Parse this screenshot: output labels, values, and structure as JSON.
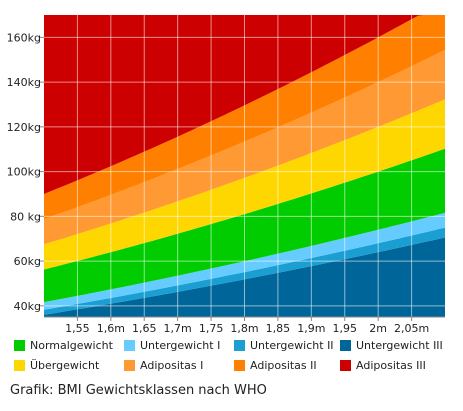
{
  "chart_data": {
    "type": "area",
    "xlabel": "",
    "ylabel": "",
    "x_range": [
      1.5,
      2.1
    ],
    "ylim": [
      35,
      170
    ],
    "x_ticks": [
      {
        "value": 1.55,
        "label": "1,55"
      },
      {
        "value": 1.6,
        "label": "1,6m"
      },
      {
        "value": 1.65,
        "label": "1,65"
      },
      {
        "value": 1.7,
        "label": "1,7m"
      },
      {
        "value": 1.75,
        "label": "1,75"
      },
      {
        "value": 1.8,
        "label": "1,8m"
      },
      {
        "value": 1.85,
        "label": "1,85"
      },
      {
        "value": 1.9,
        "label": "1,9m"
      },
      {
        "value": 1.95,
        "label": "1,95"
      },
      {
        "value": 2.0,
        "label": "2m"
      },
      {
        "value": 2.05,
        "label": "2,05m"
      }
    ],
    "y_ticks": [
      {
        "value": 40,
        "label": "40kg"
      },
      {
        "value": 60,
        "label": "60kg"
      },
      {
        "value": 80,
        "label": "80 kg"
      },
      {
        "value": 100,
        "label": "100kg"
      },
      {
        "value": 120,
        "label": "120kg"
      },
      {
        "value": 140,
        "label": "140kg"
      },
      {
        "value": 160,
        "label": "160kg"
      }
    ],
    "grid": true,
    "legend_position": "bottom",
    "series": [
      {
        "name": "Untergewicht III",
        "color": "#006699",
        "bmi_lower": 0,
        "bmi_upper": 16
      },
      {
        "name": "Untergewicht II",
        "color": "#1b9fd3",
        "bmi_lower": 16,
        "bmi_upper": 17
      },
      {
        "name": "Untergewicht I",
        "color": "#66ccff",
        "bmi_lower": 17,
        "bmi_upper": 18.5
      },
      {
        "name": "Normalgewicht",
        "color": "#00cc00",
        "bmi_lower": 18.5,
        "bmi_upper": 25
      },
      {
        "name": "Übergewicht",
        "color": "#ffd700",
        "bmi_lower": 25,
        "bmi_upper": 30
      },
      {
        "name": "Adipositas I",
        "color": "#ff9933",
        "bmi_lower": 30,
        "bmi_upper": 35
      },
      {
        "name": "Adipositas II",
        "color": "#ff7f00",
        "bmi_lower": 35,
        "bmi_upper": 40
      },
      {
        "name": "Adipositas III",
        "color": "#cc0000",
        "bmi_lower": 40,
        "bmi_upper": null
      }
    ],
    "legend_order": [
      "Normalgewicht",
      "Untergewicht I",
      "Untergewicht II",
      "Untergewicht III",
      "Übergewicht",
      "Adipositas I",
      "Adipositas II",
      "Adipositas III"
    ]
  },
  "caption": "Grafik: BMI Gewichtsklassen nach WHO"
}
